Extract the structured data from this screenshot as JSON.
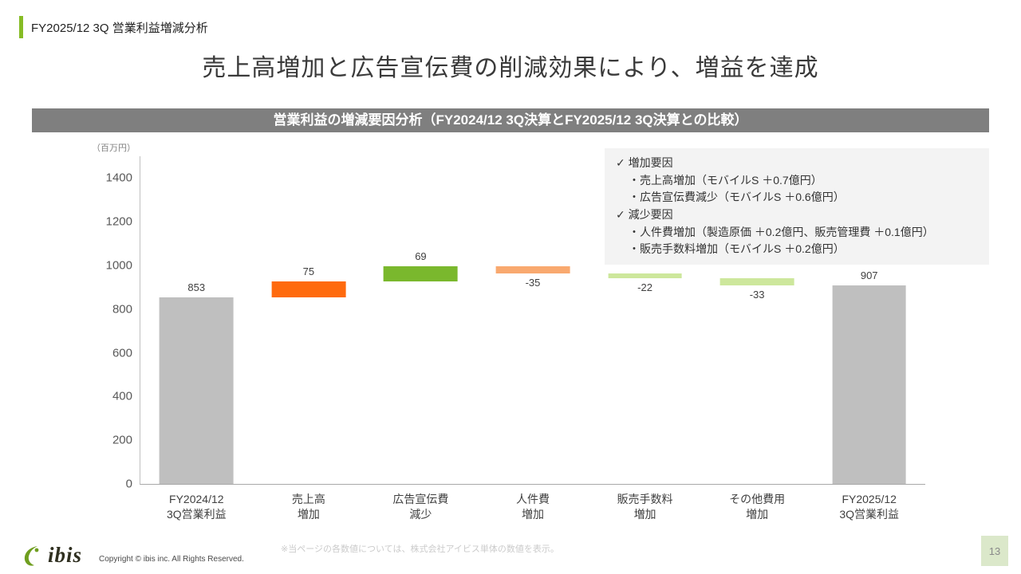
{
  "header": {
    "kicker": "FY2025/12 3Q 営業利益増減分析",
    "title": "売上高増加と広告宣伝費の削減効果により、増益を達成"
  },
  "banner": {
    "text": "営業利益の増減要因分析（FY2024/12 3Q決算とFY2025/12 3Q決算との比較）"
  },
  "chart_data": {
    "type": "waterfall",
    "title": "営業利益の増減要因分析（FY2024/12 3Q決算とFY2025/12 3Q決算との比較）",
    "unit_label": "（百万円）",
    "ylim": [
      0,
      1500
    ],
    "yticks": [
      0,
      200,
      400,
      600,
      800,
      1000,
      1200,
      1400
    ],
    "grid": false,
    "legend": "none",
    "categories": [
      "FY2024/12\n3Q営業利益",
      "売上高\n増加",
      "広告宣伝費\n減少",
      "人件費\n増加",
      "販売手数料\n増加",
      "その他費用\n増加",
      "FY2025/12\n3Q営業利益"
    ],
    "values": [
      853,
      75,
      69,
      -35,
      -22,
      -33,
      907
    ],
    "bars": [
      {
        "category": "FY2024/12\n3Q営業利益",
        "value": 853,
        "base": 0,
        "top": 853,
        "display": "853",
        "label_pos": "above",
        "color": "#bfbfbf"
      },
      {
        "category": "売上高\n増加",
        "value": 75,
        "base": 853,
        "top": 928,
        "display": "75",
        "label_pos": "above",
        "color": "#ff6a0d"
      },
      {
        "category": "広告宣伝費\n減少",
        "value": 69,
        "base": 928,
        "top": 997,
        "display": "69",
        "label_pos": "above",
        "color": "#7ab82d"
      },
      {
        "category": "人件費\n増加",
        "value": -35,
        "base": 962,
        "top": 997,
        "display": "-35",
        "label_pos": "below",
        "color": "#f9a96f"
      },
      {
        "category": "販売手数料\n増加",
        "value": -22,
        "base": 940,
        "top": 962,
        "display": "-22",
        "label_pos": "below",
        "color": "#cde79c"
      },
      {
        "category": "その他費用\n増加",
        "value": -33,
        "base": 907,
        "top": 940,
        "display": "-33",
        "label_pos": "below",
        "color": "#cde79c"
      },
      {
        "category": "FY2025/12\n3Q営業利益",
        "value": 907,
        "base": 0,
        "top": 907,
        "display": "907",
        "label_pos": "above",
        "color": "#bfbfbf"
      }
    ]
  },
  "annotation": {
    "lines": [
      {
        "marker": "✓",
        "indent": 0,
        "text": "増加要因"
      },
      {
        "marker": "",
        "indent": 1,
        "text": "・売上高増加（モバイルS ＋0.7億円）"
      },
      {
        "marker": "",
        "indent": 1,
        "text": "・広告宣伝費減少（モバイルS ＋0.6億円）"
      },
      {
        "marker": "✓",
        "indent": 0,
        "text": "減少要因"
      },
      {
        "marker": "",
        "indent": 1,
        "text": "・人件費増加（製造原価 ＋0.2億円、販売管理費 ＋0.1億円）"
      },
      {
        "marker": "",
        "indent": 1,
        "text": "・販売手数料増加（モバイルS ＋0.2億円）"
      }
    ]
  },
  "footer": {
    "logo_text": "ibis",
    "copyright": "Copyright © ibis inc. All Rights Reserved.",
    "note": "※当ページの各数値については、株式会社アイビス単体の数値を表示。",
    "page_number": "13"
  },
  "colors": {
    "accent_green": "#86bc25",
    "banner_gray": "#7f7f7f",
    "bar_gray": "#bfbfbf",
    "bar_orange": "#ff6a0d",
    "bar_green": "#7ab82d",
    "bar_light_orange": "#f9a96f",
    "bar_light_green": "#cde79c",
    "annotation_bg": "#f3f3f3",
    "page_box_bg": "#dbe8ca",
    "logo_green": "#6f9e1f"
  }
}
